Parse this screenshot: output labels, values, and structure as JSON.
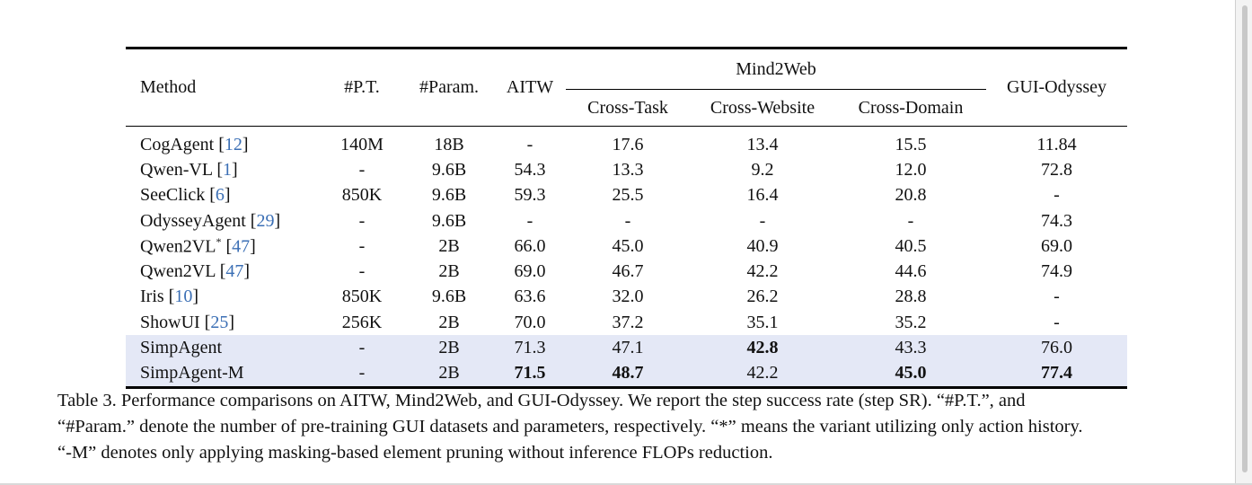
{
  "table": {
    "headers": {
      "method": "Method",
      "pt": "#P.T.",
      "param": "#Param.",
      "aitw": "AITW",
      "mind2web": "Mind2Web",
      "cross_task": "Cross-Task",
      "cross_website": "Cross-Website",
      "cross_domain": "Cross-Domain",
      "gui_odyssey": "GUI-Odyssey"
    },
    "rows": [
      {
        "name": "CogAgent",
        "ref": "12",
        "star": "",
        "pt": "140M",
        "param": "18B",
        "aitw": "-",
        "cross_task": "17.6",
        "cross_website": "13.4",
        "cross_domain": "15.5",
        "gui_odyssey": "11.84",
        "highlight": false,
        "bold": []
      },
      {
        "name": "Qwen-VL",
        "ref": "1",
        "star": "",
        "pt": "-",
        "param": "9.6B",
        "aitw": "54.3",
        "cross_task": "13.3",
        "cross_website": "9.2",
        "cross_domain": "12.0",
        "gui_odyssey": "72.8",
        "highlight": false,
        "bold": []
      },
      {
        "name": "SeeClick",
        "ref": "6",
        "star": "",
        "pt": "850K",
        "param": "9.6B",
        "aitw": "59.3",
        "cross_task": "25.5",
        "cross_website": "16.4",
        "cross_domain": "20.8",
        "gui_odyssey": "-",
        "highlight": false,
        "bold": []
      },
      {
        "name": "OdysseyAgent",
        "ref": "29",
        "star": "",
        "pt": "-",
        "param": "9.6B",
        "aitw": "-",
        "cross_task": "-",
        "cross_website": "-",
        "cross_domain": "-",
        "gui_odyssey": "74.3",
        "highlight": false,
        "bold": []
      },
      {
        "name": "Qwen2VL",
        "ref": "47",
        "star": "*",
        "pt": "-",
        "param": "2B",
        "aitw": "66.0",
        "cross_task": "45.0",
        "cross_website": "40.9",
        "cross_domain": "40.5",
        "gui_odyssey": "69.0",
        "highlight": false,
        "bold": []
      },
      {
        "name": "Qwen2VL",
        "ref": "47",
        "star": "",
        "pt": "-",
        "param": "2B",
        "aitw": "69.0",
        "cross_task": "46.7",
        "cross_website": "42.2",
        "cross_domain": "44.6",
        "gui_odyssey": "74.9",
        "highlight": false,
        "bold": []
      },
      {
        "name": "Iris",
        "ref": "10",
        "star": "",
        "pt": "850K",
        "param": "9.6B",
        "aitw": "63.6",
        "cross_task": "32.0",
        "cross_website": "26.2",
        "cross_domain": "28.8",
        "gui_odyssey": "-",
        "highlight": false,
        "bold": []
      },
      {
        "name": "ShowUI",
        "ref": "25",
        "star": "",
        "pt": "256K",
        "param": "2B",
        "aitw": "70.0",
        "cross_task": "37.2",
        "cross_website": "35.1",
        "cross_domain": "35.2",
        "gui_odyssey": "-",
        "highlight": false,
        "bold": []
      },
      {
        "name": "SimpAgent",
        "ref": "",
        "star": "",
        "pt": "-",
        "param": "2B",
        "aitw": "71.3",
        "cross_task": "47.1",
        "cross_website": "42.8",
        "cross_domain": "43.3",
        "gui_odyssey": "76.0",
        "highlight": true,
        "bold": [
          "cross_website"
        ]
      },
      {
        "name": "SimpAgent-M",
        "ref": "",
        "star": "",
        "pt": "-",
        "param": "2B",
        "aitw": "71.5",
        "cross_task": "48.7",
        "cross_website": "42.2",
        "cross_domain": "45.0",
        "gui_odyssey": "77.4",
        "highlight": true,
        "bold": [
          "aitw",
          "cross_task",
          "cross_domain",
          "gui_odyssey"
        ]
      }
    ]
  },
  "caption": {
    "line1": "Table 3.  Performance comparisons on AITW, Mind2Web, and GUI-Odyssey.  We report the step success rate (step SR). “#P.T.”, and",
    "line2": "“#Param.” denote the number of pre-training GUI datasets and parameters, respectively. “*” means the variant utilizing only action history.",
    "line3": "“-M” denotes only applying masking-based element pruning without inference FLOPs reduction."
  }
}
